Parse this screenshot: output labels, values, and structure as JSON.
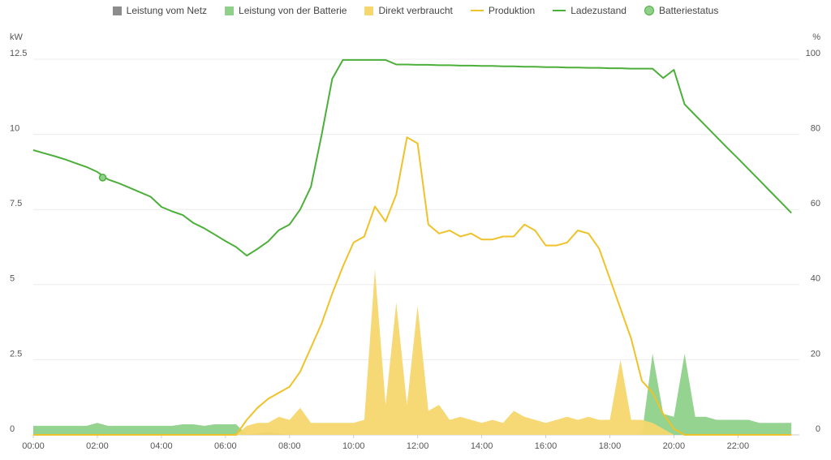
{
  "chart_data": {
    "type": "line",
    "y_label": "kW",
    "y2_label": "%",
    "x": [
      "00:00",
      "00:20",
      "00:40",
      "01:00",
      "01:20",
      "01:40",
      "02:00",
      "02:20",
      "02:40",
      "03:00",
      "03:20",
      "03:40",
      "04:00",
      "04:20",
      "04:40",
      "05:00",
      "05:20",
      "05:40",
      "06:00",
      "06:20",
      "06:40",
      "07:00",
      "07:20",
      "07:40",
      "08:00",
      "08:20",
      "08:40",
      "09:00",
      "09:20",
      "09:40",
      "10:00",
      "10:20",
      "10:40",
      "11:00",
      "11:20",
      "11:40",
      "12:00",
      "12:20",
      "12:40",
      "13:00",
      "13:20",
      "13:40",
      "14:00",
      "14:20",
      "14:40",
      "15:00",
      "15:20",
      "15:40",
      "16:00",
      "16:20",
      "16:40",
      "17:00",
      "17:20",
      "17:40",
      "18:00",
      "18:20",
      "18:40",
      "19:00",
      "19:20",
      "19:40",
      "20:00",
      "20:20",
      "20:40",
      "21:00",
      "21:20",
      "21:40",
      "22:00",
      "22:20",
      "22:40",
      "23:00",
      "23:20",
      "23:40"
    ],
    "xlim": [
      "00:00",
      "23:55"
    ],
    "xticks": [
      "00:00",
      "02:00",
      "04:00",
      "06:00",
      "08:00",
      "10:00",
      "12:00",
      "14:00",
      "16:00",
      "18:00",
      "20:00",
      "22:00"
    ],
    "ylim": [
      0,
      12.5
    ],
    "yticks": [
      0,
      2.5,
      5,
      7.5,
      10,
      12.5
    ],
    "y2lim": [
      0,
      100
    ],
    "y2ticks": [
      0,
      20,
      40,
      60,
      80,
      100
    ],
    "grid": true,
    "series": [
      {
        "name": "Leistung vom Netz",
        "kind": "area",
        "color": "#8c8c8c",
        "values": [
          0,
          0,
          0,
          0,
          0,
          0,
          0,
          0,
          0,
          0,
          0,
          0,
          0,
          0,
          0,
          0,
          0,
          0,
          0,
          0,
          0,
          0.05,
          0.1,
          0.05,
          0,
          0,
          0,
          0,
          0,
          0,
          0,
          0,
          0,
          0,
          0,
          0,
          0,
          0,
          0,
          0,
          0,
          0,
          0,
          0,
          0,
          0,
          0,
          0,
          0,
          0,
          0,
          0,
          0,
          0,
          0,
          0,
          0,
          0,
          0,
          0,
          0,
          0,
          0,
          0,
          0,
          0,
          0,
          0,
          0,
          0,
          0,
          0
        ]
      },
      {
        "name": "Leistung von der Batterie",
        "kind": "area",
        "color": "#8fd18a",
        "values": [
          0.3,
          0.3,
          0.3,
          0.3,
          0.3,
          0.3,
          0.4,
          0.3,
          0.3,
          0.3,
          0.3,
          0.3,
          0.3,
          0.3,
          0.35,
          0.35,
          0.3,
          0.35,
          0.35,
          0.35,
          0,
          0,
          0,
          0,
          0,
          0,
          0,
          0,
          0,
          0,
          0,
          0,
          0,
          0,
          0,
          0,
          0,
          0,
          0,
          0,
          0,
          0,
          0,
          0,
          0,
          0,
          0,
          0,
          0,
          0,
          0,
          0,
          0,
          0,
          0,
          0,
          0,
          0,
          2.7,
          0.7,
          0.6,
          2.7,
          0.6,
          0.6,
          0.5,
          0.5,
          0.5,
          0.5,
          0.4,
          0.4,
          0.4,
          0.4
        ]
      },
      {
        "name": "Direkt verbraucht",
        "kind": "area",
        "color": "#f5d76e",
        "values": [
          0,
          0,
          0,
          0,
          0,
          0,
          0,
          0,
          0,
          0,
          0,
          0,
          0,
          0,
          0,
          0,
          0,
          0,
          0,
          0,
          0.3,
          0.4,
          0.4,
          0.6,
          0.5,
          0.9,
          0.4,
          0.4,
          0.4,
          0.4,
          0.4,
          0.5,
          5.5,
          1.0,
          4.4,
          1.0,
          4.3,
          0.8,
          1.0,
          0.5,
          0.6,
          0.5,
          0.4,
          0.5,
          0.4,
          0.8,
          0.6,
          0.5,
          0.4,
          0.5,
          0.6,
          0.5,
          0.6,
          0.5,
          0.5,
          2.5,
          0.5,
          0.5,
          0.4,
          0.2,
          0,
          0,
          0,
          0,
          0,
          0,
          0,
          0,
          0,
          0,
          0,
          0
        ]
      },
      {
        "name": "Produktion",
        "kind": "line",
        "color": "#f0c22a",
        "values": [
          0,
          0,
          0,
          0,
          0,
          0,
          0,
          0,
          0,
          0,
          0,
          0,
          0,
          0,
          0,
          0,
          0,
          0,
          0,
          0,
          0.5,
          0.9,
          1.2,
          1.4,
          1.6,
          2.1,
          2.9,
          3.7,
          4.7,
          5.6,
          6.4,
          6.6,
          7.6,
          7.1,
          8.0,
          9.9,
          9.7,
          7.0,
          6.7,
          6.8,
          6.6,
          6.7,
          6.5,
          6.5,
          6.6,
          6.6,
          7.0,
          6.8,
          6.3,
          6.3,
          6.4,
          6.8,
          6.7,
          6.2,
          5.2,
          4.2,
          3.2,
          1.8,
          1.4,
          0.7,
          0.2,
          0,
          0,
          0,
          0,
          0,
          0,
          0,
          0,
          0,
          0,
          0
        ]
      },
      {
        "name": "Ladezustand",
        "kind": "line",
        "axis": "y2",
        "color": "#4caf3a",
        "values": [
          75.8,
          75,
          74.2,
          73.3,
          72.3,
          71.3,
          70,
          68,
          67,
          65.8,
          64.6,
          63.4,
          60.7,
          59.5,
          58.5,
          56.4,
          55,
          53.3,
          51.6,
          50,
          47.7,
          49.5,
          51.5,
          54.5,
          56,
          60,
          66,
          79.7,
          94.8,
          99.8,
          99.8,
          99.8,
          99.8,
          99.8,
          98.6,
          98.6,
          98.5,
          98.5,
          98.4,
          98.4,
          98.3,
          98.3,
          98.2,
          98.2,
          98.1,
          98.1,
          98,
          98,
          97.9,
          97.9,
          97.8,
          97.8,
          97.7,
          97.7,
          97.6,
          97.6,
          97.5,
          97.5,
          97.5,
          95,
          97.2,
          88,
          85.1,
          82.2,
          79.3,
          76.4,
          73.6,
          70.7,
          67.8,
          64.9,
          62,
          59.1
        ]
      },
      {
        "name": "Batteriestatus",
        "kind": "point",
        "axis": "y2",
        "color": "#8fd18a",
        "x": [
          "02:10"
        ],
        "values": [
          68.5
        ]
      }
    ]
  }
}
